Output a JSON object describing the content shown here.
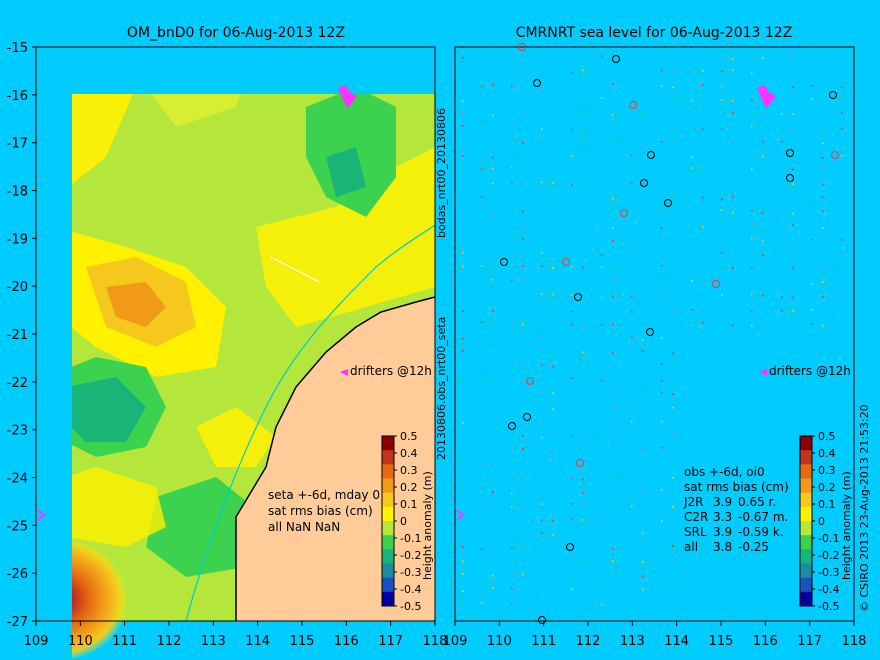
{
  "left_panel": {
    "title": "OM_bnD0 for 06-Aug-2013 12Z",
    "drifters_label": "drifters @12h",
    "stats_lines": [
      "seta +-6d, mday 0",
      "sat rms bias (cm)",
      "all NaN NaN"
    ],
    "colorbar_label": "height anomaly (m)"
  },
  "right_panel": {
    "title": "CMRNRT sea level  for 06-Aug-2013 12Z",
    "drifters_label": "drifters @12h",
    "stats_lines": [
      "obs +-6d, oi0",
      "sat rms bias (cm)"
    ],
    "stats_table": [
      {
        "sat": "J2R",
        "rms": "3.9",
        "bias": "0.65 r."
      },
      {
        "sat": "C2R",
        "rms": "3.3",
        "bias": "-0.67 m."
      },
      {
        "sat": "SRL",
        "rms": "3.9",
        "bias": "-0.59 k."
      },
      {
        "sat": "all",
        "rms": "3.8",
        "bias": "-0.25"
      }
    ],
    "colorbar_label": "height anomaly (m)"
  },
  "side_labels": {
    "top": "bodas_nrt00_20130806",
    "bottom": "20130806.obs_nrt00_seta"
  },
  "credit": "© CSIRO 2013   23-Aug-2013 21:53:20",
  "axes": {
    "lat_ticks": [
      "-15",
      "-16",
      "-17",
      "-18",
      "-19",
      "-20",
      "-21",
      "-22",
      "-23",
      "-24",
      "-25",
      "-26",
      "-27"
    ],
    "left_lon_ticks": [
      "109",
      "110",
      "111",
      "112",
      "113",
      "114",
      "115",
      "116",
      "117",
      "118"
    ],
    "right_lon_ticks": [
      "109",
      "110",
      "111",
      "112",
      "113",
      "114",
      "115",
      "116",
      "117",
      "118"
    ]
  },
  "colorbar": {
    "ticks": [
      "0.5",
      "0.4",
      "0.3",
      "0.2",
      "0.1",
      "0",
      "-0.1",
      "-0.2",
      "-0.3",
      "-0.4",
      "-0.5"
    ],
    "colors": [
      "#8b0000",
      "#c4341c",
      "#e66a10",
      "#f09a18",
      "#f6c81e",
      "#fff100",
      "#b4e63c",
      "#3cd250",
      "#18b478",
      "#1e8ca0",
      "#1c50c0",
      "#0000a0"
    ]
  },
  "colors": {
    "background": "#00ccff",
    "land": "#ffcc99",
    "drifter": "#ff33ff",
    "coast_line": "#00cccc"
  }
}
